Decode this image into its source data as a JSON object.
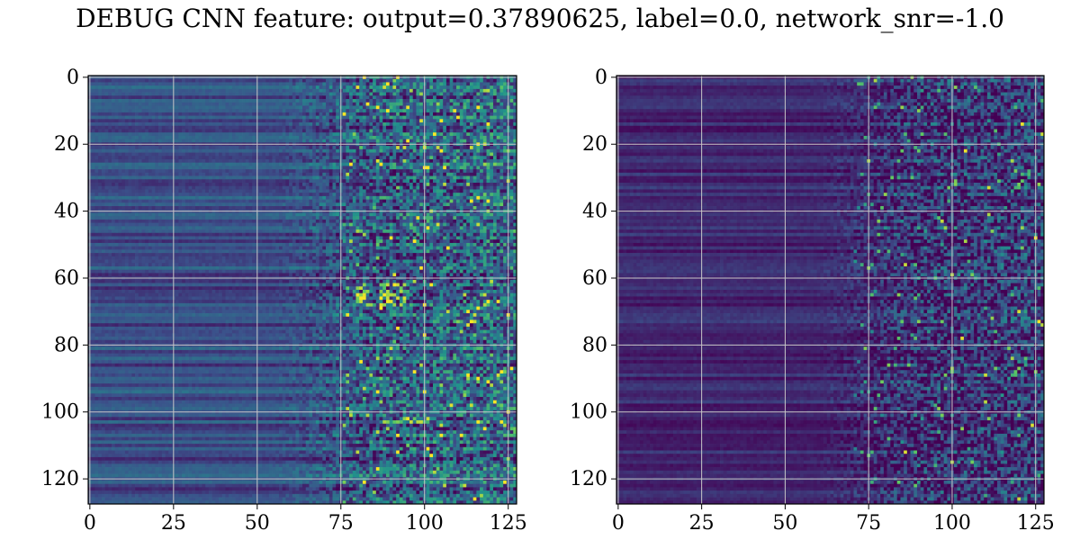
{
  "title": "DEBUG CNN feature: output=0.37890625, label=0.0, network_snr=-1.0",
  "colormap": [
    "#440154",
    "#3b528b",
    "#21918c",
    "#5ec962",
    "#fde725"
  ],
  "grid_color": "#c8c8c8",
  "chart_data": [
    {
      "type": "heatmap",
      "title": "",
      "xlabel": "",
      "ylabel": "",
      "xlim": [
        0,
        127
      ],
      "ylim": [
        127,
        0
      ],
      "rows": 128,
      "cols": 128,
      "xticks": [
        0,
        25,
        50,
        75,
        100,
        125
      ],
      "yticks": [
        0,
        20,
        40,
        60,
        80,
        100,
        120
      ],
      "grid": true,
      "structure": "columns 0-55 show smooth per-row horizontal bands (blue/teal, values ~0.2-0.35); from column ~60 onward the texture becomes noisy with speckle, values rising; bright yellow-green hot pixels concentrated after column 75, e.g. rows ~62-68 around columns 80-95 and row ~103 around columns 80-100",
      "value_range": [
        0.0,
        1.0
      ]
    },
    {
      "type": "heatmap",
      "title": "",
      "xlabel": "",
      "ylabel": "",
      "xlim": [
        0,
        127
      ],
      "ylim": [
        127,
        0
      ],
      "rows": 128,
      "cols": 128,
      "xticks": [
        0,
        25,
        50,
        75,
        100,
        125
      ],
      "yticks": [
        0,
        20,
        40,
        60,
        80,
        100,
        120
      ],
      "grid": true,
      "structure": "darker overall (mostly purple/dark blue, values ~0.05-0.2) with horizontal banding in columns 0-60; noisy speckled region from column ~65 onward with scattered green and yellow hot pixels, e.g. near (row 40, col 83), (row 44, col 112), (row 83, col 88)",
      "value_range": [
        0.0,
        1.0
      ]
    }
  ]
}
